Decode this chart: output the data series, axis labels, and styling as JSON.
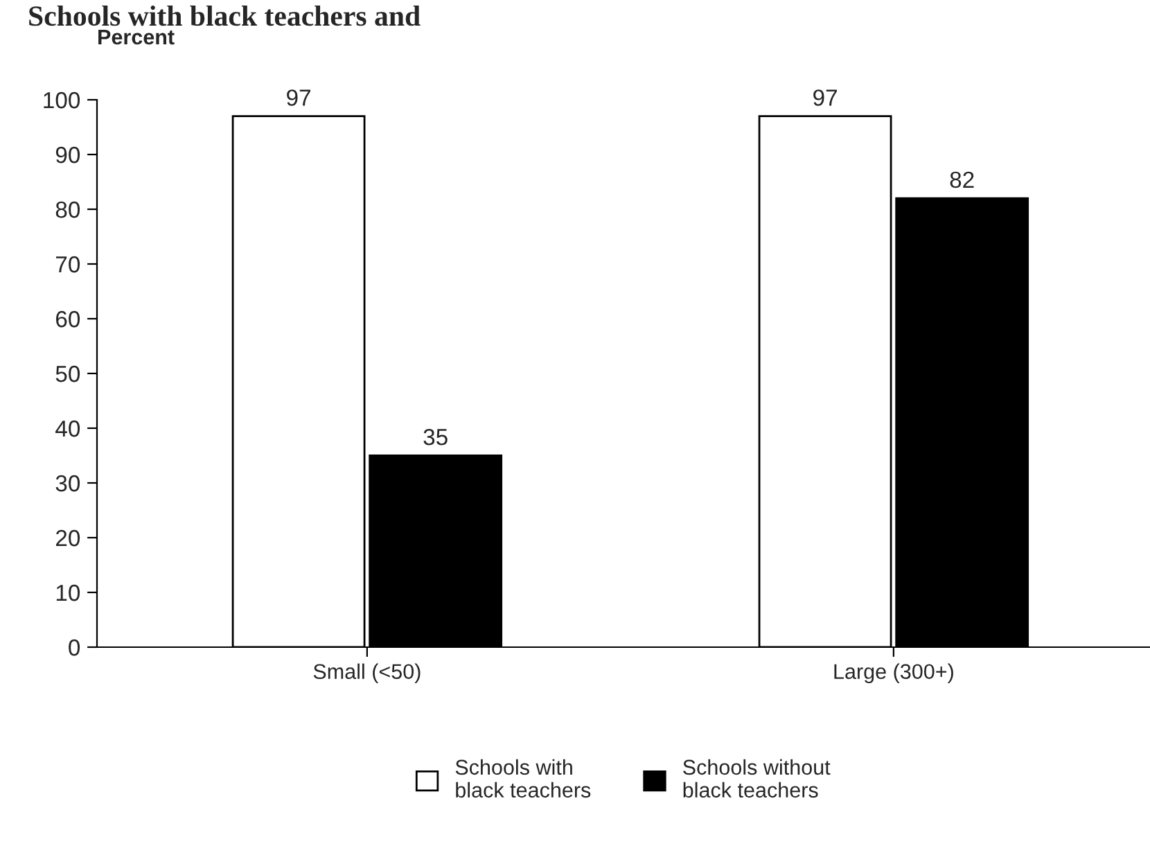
{
  "chart_data": {
    "type": "bar",
    "title": "Schools with black teachers and",
    "ylabel": "Percent",
    "categories": [
      "Small (<50)",
      "Large (300+)"
    ],
    "series": [
      {
        "name": "Schools with\nblack teachers",
        "color": "#ffffff",
        "values": [
          97,
          97
        ]
      },
      {
        "name": "Schools without\nblack teachers",
        "color": "#000000",
        "values": [
          35,
          82
        ]
      }
    ],
    "ylim": [
      0,
      100
    ],
    "yticks": [
      0,
      10,
      20,
      30,
      40,
      50,
      60,
      70,
      80,
      90,
      100
    ],
    "data_labels": true,
    "grid": false,
    "legend": "bottom"
  }
}
